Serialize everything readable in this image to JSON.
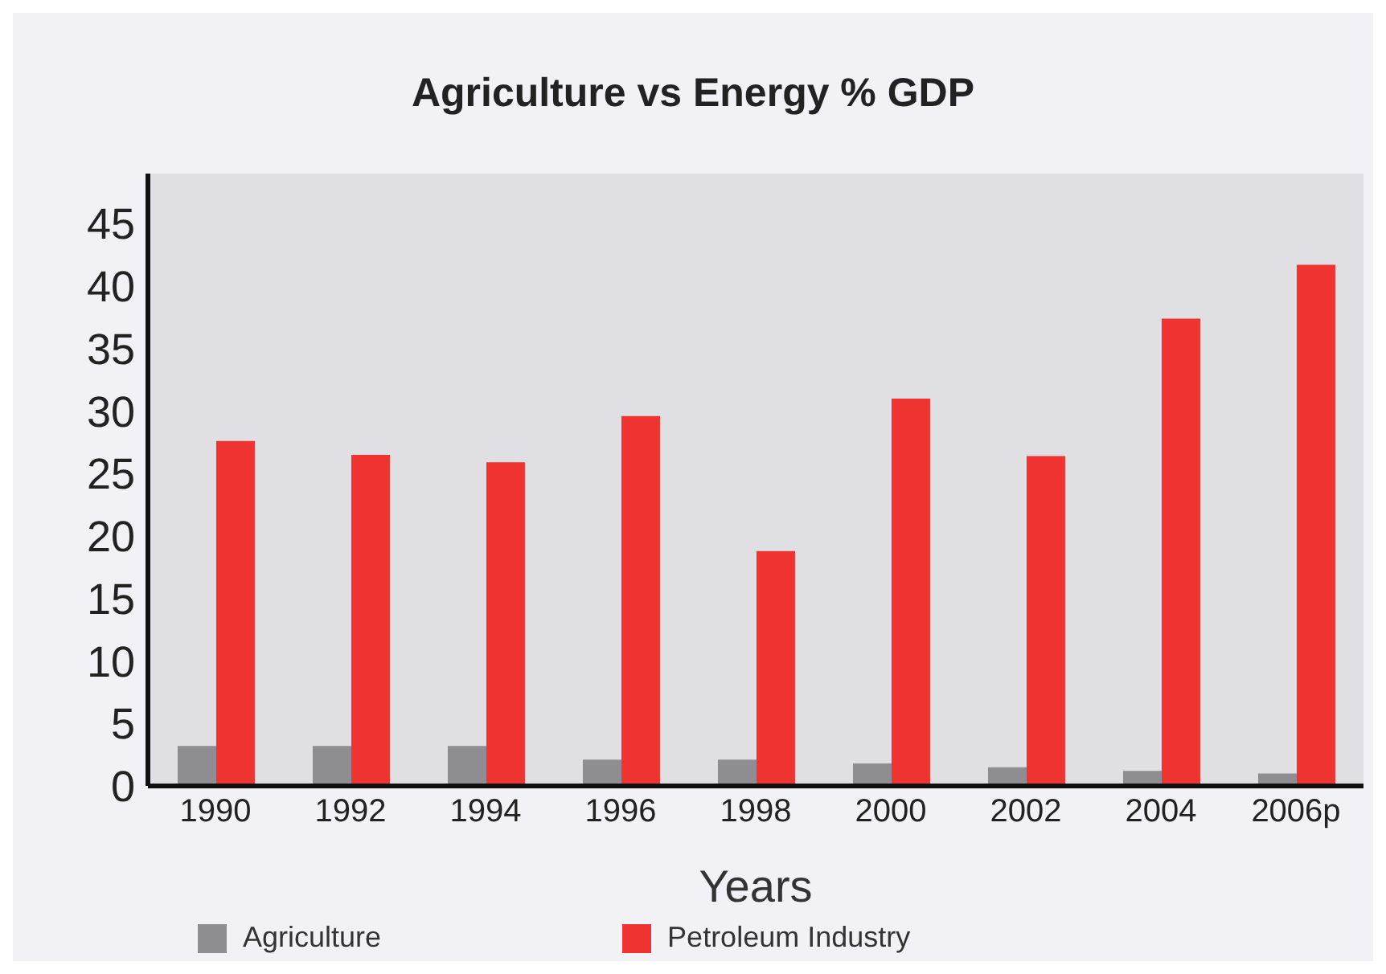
{
  "chart_data": {
    "type": "bar",
    "title": "Agriculture vs Energy % GDP",
    "xlabel": "Years",
    "categories": [
      "1990",
      "1992",
      "1994",
      "1996",
      "1998",
      "2000",
      "2002",
      "2004",
      "2006p"
    ],
    "series": [
      {
        "name": "Agriculture",
        "color": "#8e8d92",
        "values": [
          3.2,
          3.2,
          3.2,
          2.1,
          2.1,
          1.8,
          1.5,
          1.2,
          1.0
        ]
      },
      {
        "name": "Petroleum Industry",
        "color": "#ef3330",
        "values": [
          27.6,
          26.5,
          25.9,
          29.6,
          18.8,
          31.0,
          26.4,
          37.4,
          41.7
        ]
      }
    ],
    "ylim": [
      0,
      49
    ],
    "yticks": [
      0,
      5,
      10,
      15,
      20,
      25,
      30,
      35,
      40,
      45
    ],
    "grid": false,
    "legend": "bottom left"
  }
}
